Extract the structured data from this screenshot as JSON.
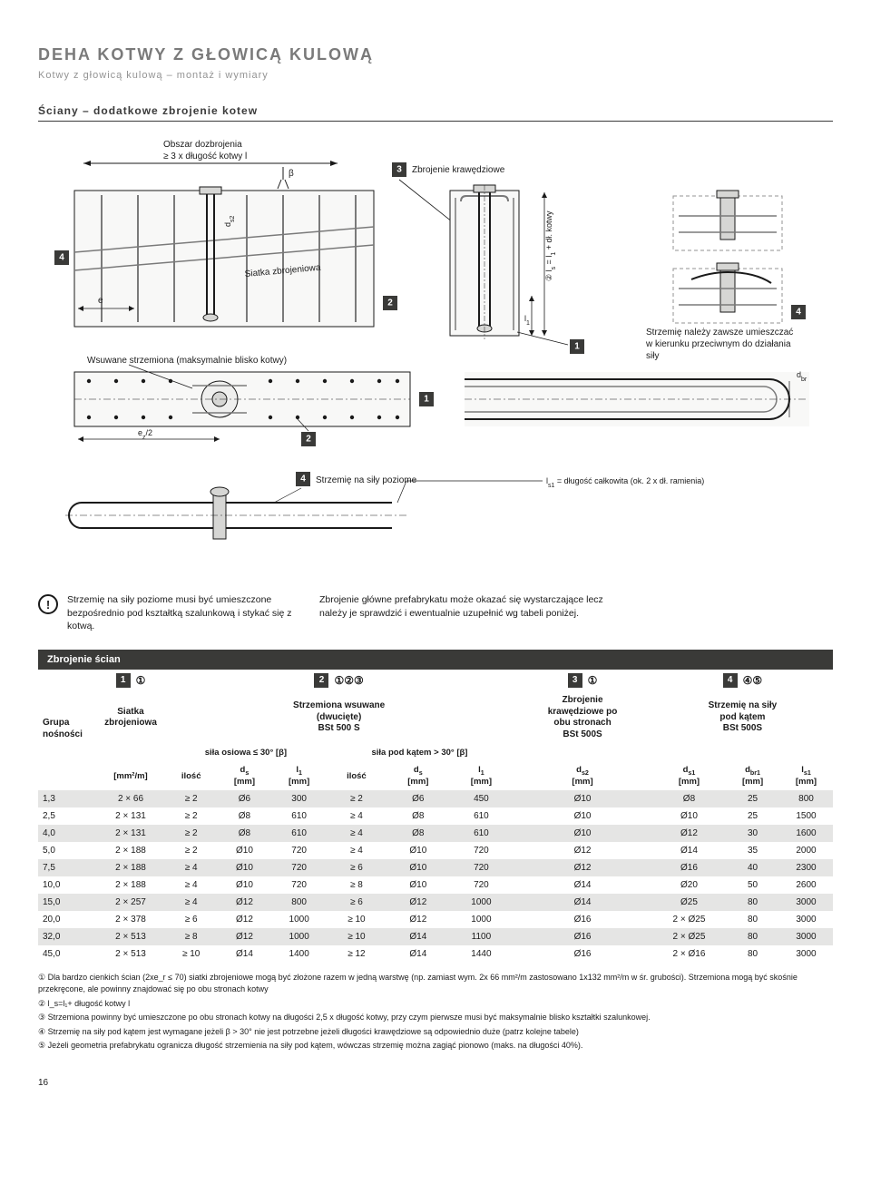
{
  "header": {
    "title": "DEHA KOTWY Z GŁOWICĄ KULOWĄ",
    "subtitle": "Kotwy z głowicą kulową – montaż i wymiary"
  },
  "section_heading": "Ściany – dodatkowe zbrojenie kotew",
  "diagram": {
    "obs_label": "Obszar dozbrojenia\n≥ 3 x długość kotwy l",
    "beta": "β",
    "edge_r_label": "Zbrojenie krawędziowe",
    "siatka_label": "Siatka zbrojeniowa",
    "e_label": "e",
    "ds2_label": "d_{s2}",
    "l1_label": "l₁",
    "ls_formula": "l_s = l₁ + dł. kotwy",
    "strz_right": "Strzemię należy zawsze umieszczać w kierunku przeciwnym do działania siły",
    "wsuwane": "Wsuwane strzemiona (maksymalnie blisko kotwy)",
    "ez2": "e_z/2",
    "dbr": "d_{br}",
    "strz_poziome": "Strzemię na siły poziome",
    "ls1_formula": "l_{s1} = długość całkowita (ok. 2 x dł. ramienia)",
    "badges": {
      "b1": "1",
      "b2": "2",
      "b3": "3",
      "b4": "4"
    }
  },
  "notes": {
    "warn": "Strzemię na siły poziome musi być umieszczone bezpośrednio pod kształtką szalunkową i stykać się z kotwą.",
    "main_note": "Zbrojenie główne prefabrykatu może okazać się wystarczające lecz należy je sprawdzić i ewentualnie uzupełnić wg tabeli poniżej."
  },
  "table": {
    "header_bar": "Zbrojenie ścian",
    "col_groups": [
      {
        "badge": "1",
        "circles": "①",
        "label": "Siatka\nzbrojeniowa"
      },
      {
        "badge": "2",
        "circles": "①②③",
        "label": "Strzemiona wsuwane\n(dwucięte)\nBSt 500 S"
      },
      {
        "badge": "3",
        "circles": "①",
        "label": "Zbrojenie\nkrawędziowe po\nobu stronach\nBSt 500S"
      },
      {
        "badge": "4",
        "circles": "④⑤",
        "label": "Strzemię na siły\npod kątem\nBSt 500S"
      }
    ],
    "left_label": "Grupa\nnośności",
    "sub_span_labels": {
      "axial": "siła osiowa ≤ 30° [β]",
      "angled": "siła pod kątem > 30° [β]"
    },
    "sub_heads": [
      "",
      "[mm²/m]",
      "ilość",
      "d_s\n[mm]",
      "l₁\n[mm]",
      "ilość",
      "d_s\n[mm]",
      "l₁\n[mm]",
      "d_{s2}\n[mm]",
      "d_{s1}\n[mm]",
      "d_{br1}\n[mm]",
      "l_{s1}\n[mm]"
    ],
    "rows": [
      [
        "1,3",
        "2 ×  66",
        "≥ 2",
        "Ø6",
        "300",
        "≥ 2",
        "Ø6",
        "450",
        "Ø10",
        "Ø8",
        "25",
        "800"
      ],
      [
        "2,5",
        "2 × 131",
        "≥ 2",
        "Ø8",
        "610",
        "≥ 4",
        "Ø8",
        "610",
        "Ø10",
        "Ø10",
        "25",
        "1500"
      ],
      [
        "4,0",
        "2 × 131",
        "≥ 2",
        "Ø8",
        "610",
        "≥ 4",
        "Ø8",
        "610",
        "Ø10",
        "Ø12",
        "30",
        "1600"
      ],
      [
        "5,0",
        "2 × 188",
        "≥ 2",
        "Ø10",
        "720",
        "≥ 4",
        "Ø10",
        "720",
        "Ø12",
        "Ø14",
        "35",
        "2000"
      ],
      [
        "7,5",
        "2 × 188",
        "≥ 4",
        "Ø10",
        "720",
        "≥ 6",
        "Ø10",
        "720",
        "Ø12",
        "Ø16",
        "40",
        "2300"
      ],
      [
        "10,0",
        "2 × 188",
        "≥ 4",
        "Ø10",
        "720",
        "≥ 8",
        "Ø10",
        "720",
        "Ø14",
        "Ø20",
        "50",
        "2600"
      ],
      [
        "15,0",
        "2 × 257",
        "≥ 4",
        "Ø12",
        "800",
        "≥ 6",
        "Ø12",
        "1000",
        "Ø14",
        "Ø25",
        "80",
        "3000"
      ],
      [
        "20,0",
        "2 × 378",
        "≥ 6",
        "Ø12",
        "1000",
        "≥ 10",
        "Ø12",
        "1000",
        "Ø16",
        "2 × Ø25",
        "80",
        "3000"
      ],
      [
        "32,0",
        "2 × 513",
        "≥ 8",
        "Ø12",
        "1000",
        "≥ 10",
        "Ø14",
        "1100",
        "Ø16",
        "2 × Ø25",
        "80",
        "3000"
      ],
      [
        "45,0",
        "2 × 513",
        "≥ 10",
        "Ø14",
        "1400",
        "≥ 12",
        "Ø14",
        "1440",
        "Ø16",
        "2 × Ø16",
        "80",
        "3000"
      ]
    ],
    "row_colors_alt": [
      "#ffffff",
      "#e5e5e4"
    ]
  },
  "footnotes": [
    "① Dla bardzo cienkich ścian (2xe_r ≤ 70) siatki zbrojeniowe mogą być złożone razem w jedną warstwę (np. zamiast wym. 2x 66 mm²/m zastosowano 1x132 mm²/m w śr. grubości). Strzemiona mogą być skośnie przekręcone, ale powinny znajdować się po obu stronach kotwy",
    "② l_s=l₁+ długość kotwy l",
    "③ Strzemiona powinny być umieszczone po obu stronach kotwy na długości 2,5 x długość kotwy, przy czym pierwsze musi być maksymalnie blisko kształtki szalunkowej.",
    "④ Strzemię na siły pod kątem jest wymagane jeżeli β > 30° nie jest potrzebne jeżeli długości krawędziowe są odpowiednio duże (patrz kolejne tabele)",
    "⑤ Jeżeli geometria prefabrykatu ogranicza długość strzemienia na siły pod kątem, wówczas strzemię można zagiąć pionowo (maks. na długości 40%)."
  ],
  "pagenum": "16",
  "colors": {
    "grey_dark": "#3a3a38",
    "grey_medium": "#939393",
    "grey_light": "#d6d6d4",
    "row_alt": "#e5e5e4"
  }
}
